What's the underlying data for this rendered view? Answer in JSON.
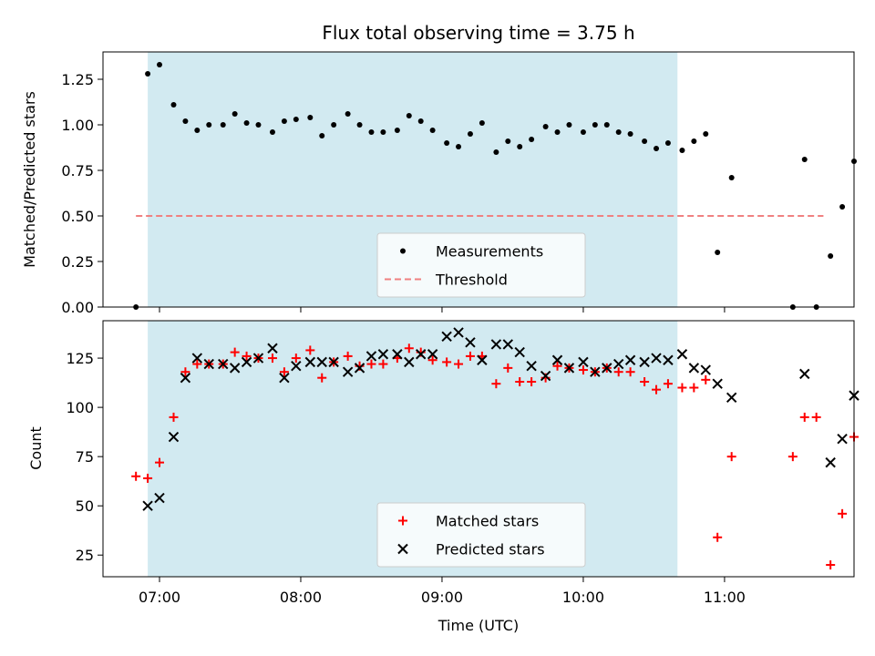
{
  "chart_data": [
    {
      "type": "scatter",
      "title": "Flux total observing time = 3.75 h",
      "xlabel": "",
      "ylabel": "Matched/Predicted stars",
      "xlim": [
        "06:36",
        "11:55"
      ],
      "ylim": [
        0,
        1.4
      ],
      "yticks": [
        0.0,
        0.25,
        0.5,
        0.75,
        1.0,
        1.25
      ],
      "ytick_labels": [
        "0.00",
        "0.25",
        "0.50",
        "0.75",
        "1.00",
        "1.25"
      ],
      "xticks": [
        "07:00",
        "08:00",
        "09:00",
        "10:00",
        "11:00"
      ],
      "xtick_labels_shown": false,
      "shaded_region": {
        "start": "06:55",
        "end": "10:40",
        "color": "#add8e6"
      },
      "legend_position": "lower center",
      "threshold": {
        "name": "Threshold",
        "value": 0.5,
        "x_start": "06:50",
        "x_end": "11:42",
        "color": "#f08080",
        "style": "dashed"
      },
      "series": [
        {
          "name": "Measurements",
          "marker": "dot",
          "color": "#000000",
          "points": [
            [
              "06:50",
              0.0
            ],
            [
              "06:55",
              1.28
            ],
            [
              "07:00",
              1.33
            ],
            [
              "07:06",
              1.11
            ],
            [
              "07:11",
              1.02
            ],
            [
              "07:16",
              0.97
            ],
            [
              "07:21",
              1.0
            ],
            [
              "07:27",
              1.0
            ],
            [
              "07:32",
              1.06
            ],
            [
              "07:37",
              1.01
            ],
            [
              "07:42",
              1.0
            ],
            [
              "07:48",
              0.96
            ],
            [
              "07:53",
              1.02
            ],
            [
              "07:58",
              1.03
            ],
            [
              "08:04",
              1.04
            ],
            [
              "08:09",
              0.94
            ],
            [
              "08:14",
              1.0
            ],
            [
              "08:20",
              1.06
            ],
            [
              "08:25",
              1.0
            ],
            [
              "08:30",
              0.96
            ],
            [
              "08:35",
              0.96
            ],
            [
              "08:41",
              0.97
            ],
            [
              "08:46",
              1.05
            ],
            [
              "08:51",
              1.02
            ],
            [
              "08:56",
              0.97
            ],
            [
              "09:02",
              0.9
            ],
            [
              "09:07",
              0.88
            ],
            [
              "09:12",
              0.95
            ],
            [
              "09:17",
              1.01
            ],
            [
              "09:23",
              0.85
            ],
            [
              "09:28",
              0.91
            ],
            [
              "09:33",
              0.88
            ],
            [
              "09:38",
              0.92
            ],
            [
              "09:44",
              0.99
            ],
            [
              "09:49",
              0.96
            ],
            [
              "09:54",
              1.0
            ],
            [
              "10:00",
              0.96
            ],
            [
              "10:05",
              1.0
            ],
            [
              "10:10",
              1.0
            ],
            [
              "10:15",
              0.96
            ],
            [
              "10:20",
              0.95
            ],
            [
              "10:26",
              0.91
            ],
            [
              "10:31",
              0.87
            ],
            [
              "10:36",
              0.9
            ],
            [
              "10:42",
              0.86
            ],
            [
              "10:47",
              0.91
            ],
            [
              "10:52",
              0.95
            ],
            [
              "10:57",
              0.3
            ],
            [
              "11:03",
              0.71
            ],
            [
              "11:29",
              0.0
            ],
            [
              "11:34",
              0.81
            ],
            [
              "11:39",
              0.0
            ],
            [
              "11:45",
              0.28
            ],
            [
              "11:50",
              0.55
            ],
            [
              "11:55",
              0.8
            ]
          ]
        }
      ]
    },
    {
      "type": "scatter",
      "title": "",
      "xlabel": "Time (UTC)",
      "ylabel": "Count",
      "xlim": [
        "06:36",
        "11:55"
      ],
      "ylim": [
        14,
        144
      ],
      "yticks": [
        25,
        50,
        75,
        100,
        125
      ],
      "ytick_labels": [
        "25",
        "50",
        "75",
        "100",
        "125"
      ],
      "xticks": [
        "07:00",
        "08:00",
        "09:00",
        "10:00",
        "11:00"
      ],
      "xtick_labels": [
        "07:00",
        "08:00",
        "09:00",
        "10:00",
        "11:00"
      ],
      "shaded_region": {
        "start": "06:55",
        "end": "10:40",
        "color": "#add8e6"
      },
      "legend_position": "lower center",
      "series": [
        {
          "name": "Matched stars",
          "marker": "plus",
          "color": "#ff0000",
          "points": [
            [
              "06:50",
              65
            ],
            [
              "06:55",
              64
            ],
            [
              "07:00",
              72
            ],
            [
              "07:06",
              95
            ],
            [
              "07:11",
              118
            ],
            [
              "07:16",
              122
            ],
            [
              "07:21",
              122
            ],
            [
              "07:27",
              122
            ],
            [
              "07:32",
              128
            ],
            [
              "07:37",
              126
            ],
            [
              "07:42",
              125
            ],
            [
              "07:48",
              125
            ],
            [
              "07:53",
              118
            ],
            [
              "07:58",
              125
            ],
            [
              "08:04",
              129
            ],
            [
              "08:09",
              115
            ],
            [
              "08:14",
              123
            ],
            [
              "08:20",
              126
            ],
            [
              "08:25",
              121
            ],
            [
              "08:30",
              122
            ],
            [
              "08:35",
              122
            ],
            [
              "08:41",
              125
            ],
            [
              "08:46",
              130
            ],
            [
              "08:51",
              128
            ],
            [
              "08:56",
              124
            ],
            [
              "09:02",
              123
            ],
            [
              "09:07",
              122
            ],
            [
              "09:12",
              126
            ],
            [
              "09:17",
              126
            ],
            [
              "09:23",
              112
            ],
            [
              "09:28",
              120
            ],
            [
              "09:33",
              113
            ],
            [
              "09:38",
              113
            ],
            [
              "09:44",
              115
            ],
            [
              "09:49",
              121
            ],
            [
              "09:54",
              120
            ],
            [
              "10:00",
              119
            ],
            [
              "10:05",
              118
            ],
            [
              "10:10",
              120
            ],
            [
              "10:15",
              118
            ],
            [
              "10:20",
              118
            ],
            [
              "10:26",
              113
            ],
            [
              "10:31",
              109
            ],
            [
              "10:36",
              112
            ],
            [
              "10:42",
              110
            ],
            [
              "10:47",
              110
            ],
            [
              "10:52",
              114
            ],
            [
              "10:57",
              34
            ],
            [
              "11:03",
              75
            ],
            [
              "11:29",
              75
            ],
            [
              "11:34",
              95
            ],
            [
              "11:39",
              95
            ],
            [
              "11:45",
              20
            ],
            [
              "11:50",
              46
            ],
            [
              "11:55",
              85
            ]
          ]
        },
        {
          "name": "Predicted stars",
          "marker": "x",
          "color": "#000000",
          "points": [
            [
              "06:55",
              50
            ],
            [
              "07:00",
              54
            ],
            [
              "07:06",
              85
            ],
            [
              "07:11",
              115
            ],
            [
              "07:16",
              125
            ],
            [
              "07:21",
              122
            ],
            [
              "07:27",
              122
            ],
            [
              "07:32",
              120
            ],
            [
              "07:37",
              123
            ],
            [
              "07:42",
              125
            ],
            [
              "07:48",
              130
            ],
            [
              "07:53",
              115
            ],
            [
              "07:58",
              121
            ],
            [
              "08:04",
              123
            ],
            [
              "08:09",
              123
            ],
            [
              "08:14",
              123
            ],
            [
              "08:20",
              118
            ],
            [
              "08:25",
              120
            ],
            [
              "08:30",
              126
            ],
            [
              "08:35",
              127
            ],
            [
              "08:41",
              127
            ],
            [
              "08:46",
              123
            ],
            [
              "08:51",
              127
            ],
            [
              "08:56",
              127
            ],
            [
              "09:02",
              136
            ],
            [
              "09:07",
              138
            ],
            [
              "09:12",
              133
            ],
            [
              "09:17",
              124
            ],
            [
              "09:23",
              132
            ],
            [
              "09:28",
              132
            ],
            [
              "09:33",
              128
            ],
            [
              "09:38",
              121
            ],
            [
              "09:44",
              116
            ],
            [
              "09:49",
              124
            ],
            [
              "09:54",
              120
            ],
            [
              "10:00",
              123
            ],
            [
              "10:05",
              118
            ],
            [
              "10:10",
              120
            ],
            [
              "10:15",
              122
            ],
            [
              "10:20",
              124
            ],
            [
              "10:26",
              123
            ],
            [
              "10:31",
              125
            ],
            [
              "10:36",
              124
            ],
            [
              "10:42",
              127
            ],
            [
              "10:47",
              120
            ],
            [
              "10:52",
              119
            ],
            [
              "10:57",
              112
            ],
            [
              "11:03",
              105
            ],
            [
              "11:34",
              117
            ],
            [
              "11:45",
              72
            ],
            [
              "11:50",
              84
            ],
            [
              "11:55",
              106
            ]
          ]
        }
      ]
    }
  ]
}
